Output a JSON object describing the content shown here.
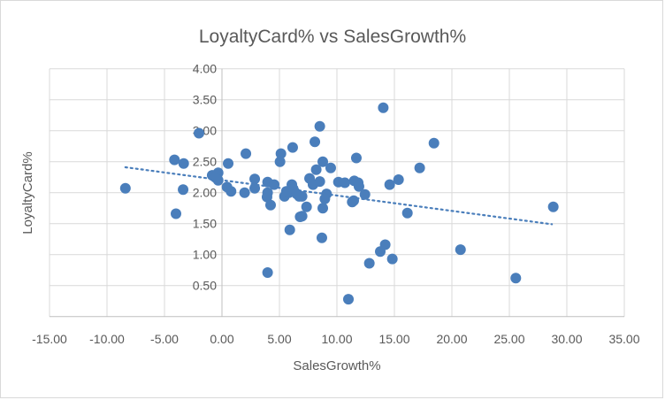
{
  "chart_data": {
    "type": "scatter",
    "title": "LoyaltyCard% vs SalesGrowth%",
    "xlabel": "SalesGrowth%",
    "ylabel": "LoyaltyCard%",
    "xlim": [
      -15,
      35
    ],
    "ylim": [
      0,
      4
    ],
    "xticks": [
      -15,
      -10,
      -5,
      0,
      5,
      10,
      15,
      20,
      25,
      30,
      35
    ],
    "yticks": [
      0.5,
      1,
      1.5,
      2,
      2.5,
      3,
      3.5,
      4
    ],
    "xtick_labels": [
      "-15.00",
      "-10.00",
      "-5.00",
      "0.00",
      "5.00",
      "10.00",
      "15.00",
      "20.00",
      "25.00",
      "30.00",
      "35.00"
    ],
    "ytick_labels": [
      "0.50",
      "1.00",
      "1.50",
      "2.00",
      "2.50",
      "3.00",
      "3.50",
      "4.00"
    ],
    "grid": true,
    "marker_color": "#4a7ebb",
    "trendline": {
      "type": "linear",
      "style": "dotted",
      "x": [
        -8.4,
        28.7
      ],
      "y": [
        2.41,
        1.49
      ]
    },
    "points": [
      [
        -8.4,
        2.07
      ],
      [
        -2.0,
        2.96
      ],
      [
        -4.13,
        2.53
      ],
      [
        -3.33,
        2.47
      ],
      [
        -3.38,
        2.05
      ],
      [
        -4.0,
        1.66
      ],
      [
        -0.85,
        2.28
      ],
      [
        -0.33,
        2.32
      ],
      [
        -0.33,
        2.2
      ],
      [
        -0.6,
        2.25
      ],
      [
        0.54,
        2.47
      ],
      [
        0.44,
        2.09
      ],
      [
        0.79,
        2.02
      ],
      [
        2.08,
        2.63
      ],
      [
        1.97,
        2.0
      ],
      [
        2.85,
        2.22
      ],
      [
        2.85,
        2.07
      ],
      [
        3.97,
        2.17
      ],
      [
        4.54,
        2.13
      ],
      [
        3.97,
        2.0
      ],
      [
        3.92,
        1.93
      ],
      [
        4.23,
        1.8
      ],
      [
        3.97,
        0.71
      ],
      [
        5.13,
        2.63
      ],
      [
        5.05,
        2.5
      ],
      [
        6.15,
        2.73
      ],
      [
        5.9,
        1.4
      ],
      [
        5.44,
        1.94
      ],
      [
        8.51,
        3.07
      ],
      [
        8.08,
        2.82
      ],
      [
        14.03,
        3.37
      ],
      [
        8.77,
        2.5
      ],
      [
        9.46,
        2.4
      ],
      [
        8.2,
        2.37
      ],
      [
        11.69,
        2.56
      ],
      [
        17.2,
        2.4
      ],
      [
        15.36,
        2.21
      ],
      [
        14.59,
        2.13
      ],
      [
        16.13,
        1.67
      ],
      [
        6.08,
        2.13
      ],
      [
        6.33,
        2.01
      ],
      [
        6.72,
        1.94
      ],
      [
        6.97,
        1.94
      ],
      [
        5.82,
        2.0
      ],
      [
        7.62,
        2.23
      ],
      [
        7.92,
        2.13
      ],
      [
        8.51,
        2.18
      ],
      [
        7.36,
        1.77
      ],
      [
        6.97,
        1.62
      ],
      [
        6.8,
        1.61
      ],
      [
        8.69,
        1.27
      ],
      [
        11.0,
        0.28
      ],
      [
        9.1,
        1.98
      ],
      [
        8.95,
        1.9
      ],
      [
        8.77,
        1.75
      ],
      [
        10.13,
        2.17
      ],
      [
        10.69,
        2.16
      ],
      [
        11.51,
        2.19
      ],
      [
        11.85,
        2.16
      ],
      [
        11.92,
        2.1
      ],
      [
        12.44,
        1.97
      ],
      [
        11.33,
        1.85
      ],
      [
        11.46,
        1.87
      ],
      [
        12.82,
        0.86
      ],
      [
        13.77,
        1.05
      ],
      [
        14.2,
        1.16
      ],
      [
        14.82,
        0.93
      ],
      [
        18.44,
        2.8
      ],
      [
        20.75,
        1.08
      ],
      [
        25.56,
        0.62
      ],
      [
        28.82,
        1.77
      ],
      [
        6.2,
        2.06
      ],
      [
        6.5,
        1.98
      ],
      [
        5.6,
        2.02
      ]
    ]
  }
}
